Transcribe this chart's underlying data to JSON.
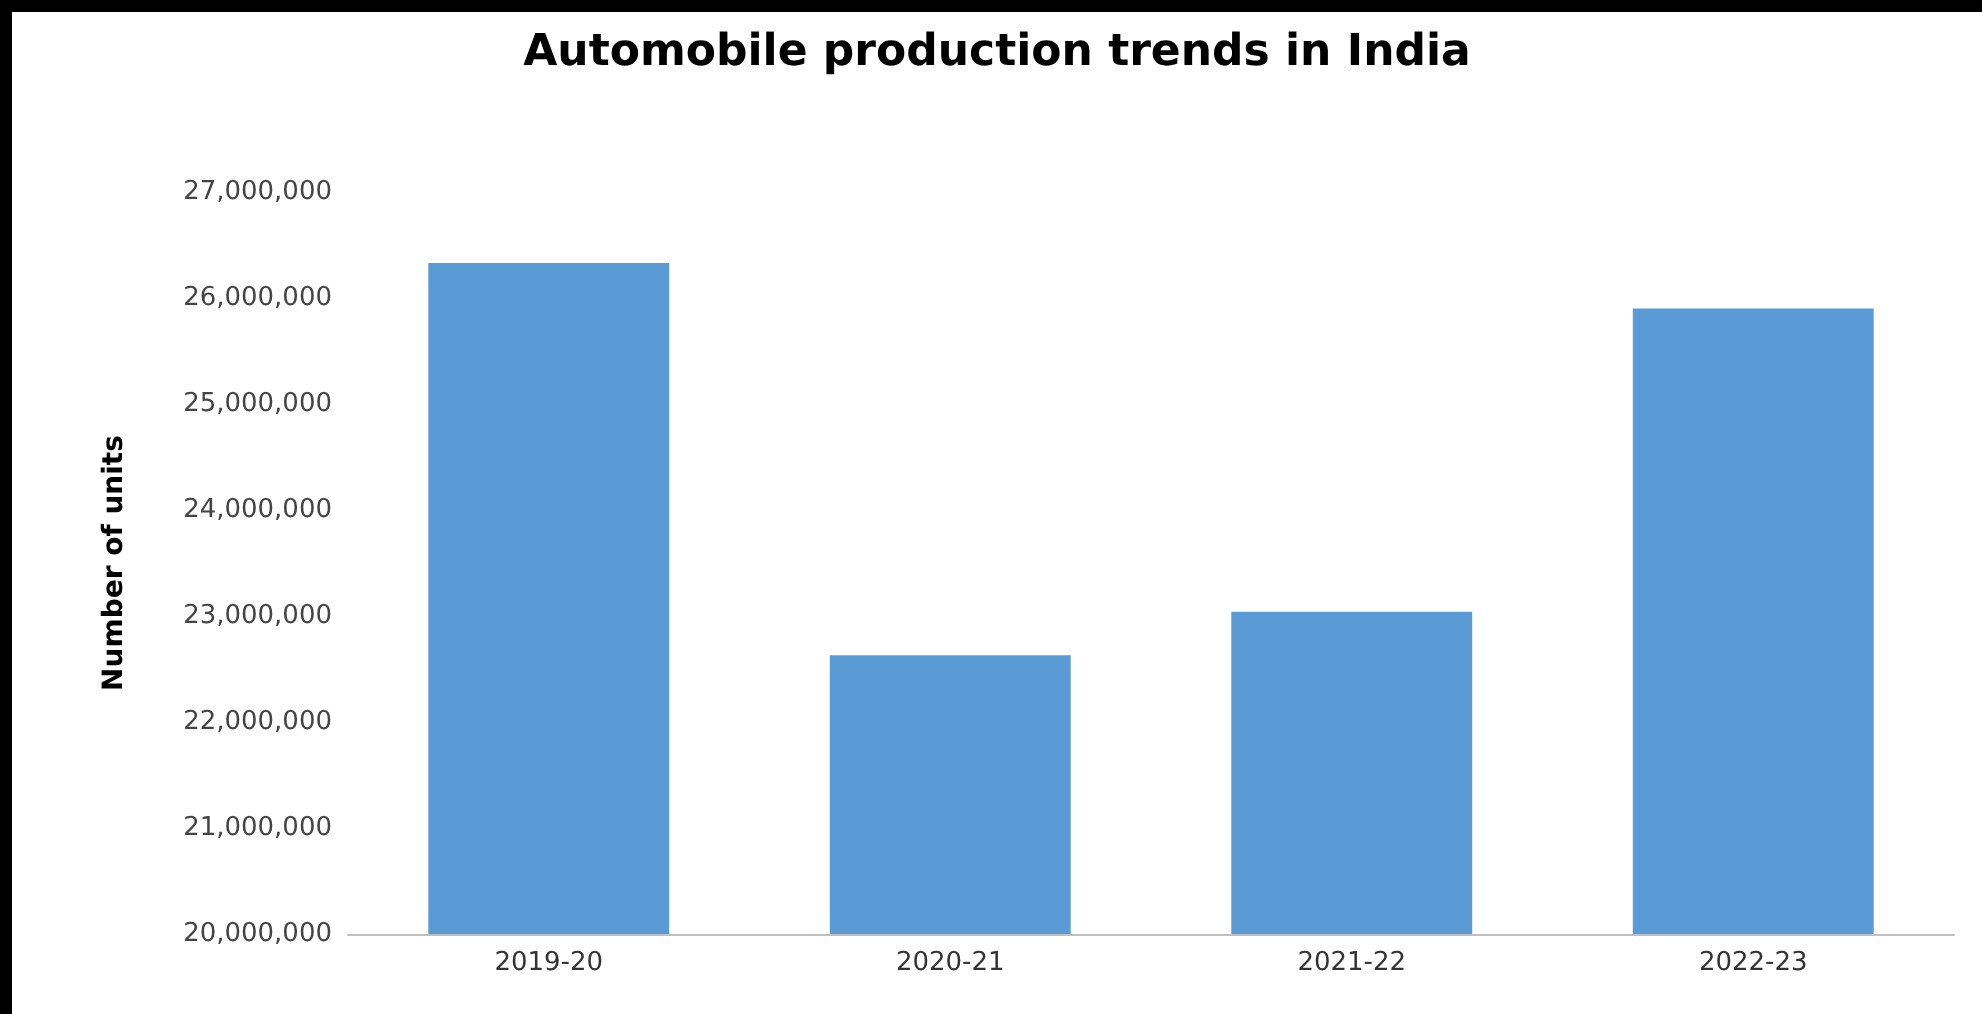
{
  "chart_data": {
    "type": "bar",
    "title": "Automobile production trends in India",
    "ylabel": "Number of units",
    "categories": [
      "2019-20",
      "2020-21",
      "2021-22",
      "2022-23"
    ],
    "values": [
      26330000,
      22630000,
      23040000,
      25900000
    ],
    "color": "#5b9bd5",
    "ylim": [
      20000000,
      27000000
    ],
    "yticks": [
      {
        "value": 20000000,
        "label": "20,000,000"
      },
      {
        "value": 21000000,
        "label": "21,000,000"
      },
      {
        "value": 22000000,
        "label": "22,000,000"
      },
      {
        "value": 23000000,
        "label": "23,000,000"
      },
      {
        "value": 24000000,
        "label": "24,000,000"
      },
      {
        "value": 25000000,
        "label": "25,000,000"
      },
      {
        "value": 26000000,
        "label": "26,000,000"
      },
      {
        "value": 27000000,
        "label": "27,000,000"
      }
    ],
    "grid": false
  }
}
